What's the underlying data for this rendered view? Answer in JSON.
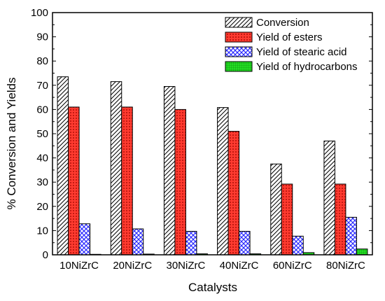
{
  "chart_data": {
    "type": "bar",
    "title": "",
    "xlabel": "Catalysts",
    "ylabel": "% Conversion and Yields",
    "ylim": [
      0,
      100
    ],
    "yticks": [
      0,
      10,
      20,
      30,
      40,
      50,
      60,
      70,
      80,
      90,
      100
    ],
    "grid": false,
    "legend_position": "top-right",
    "categories": [
      "10NiZrC",
      "20NiZrC",
      "30NiZrC",
      "40NiZrC",
      "60NiZrC",
      "80NiZrC"
    ],
    "series": [
      {
        "name": "Conversion",
        "values": [
          73.5,
          71.5,
          69.5,
          60.8,
          37.5,
          47.0
        ],
        "fill": "#ffffff",
        "pattern": "diagonal-hatch",
        "stroke": "#000000"
      },
      {
        "name": "Yield of esters",
        "values": [
          61.0,
          61.0,
          60.0,
          51.0,
          29.2,
          29.2
        ],
        "fill": "#ff3b30",
        "pattern": "dots",
        "stroke": "#000000"
      },
      {
        "name": "Yield of stearic acid",
        "values": [
          12.8,
          10.7,
          9.7,
          9.7,
          7.7,
          15.5
        ],
        "fill": "#2a2aff",
        "pattern": "crosshatch",
        "stroke": "#000000"
      },
      {
        "name": "Yield of hydrocarbons",
        "values": [
          0.2,
          0.3,
          0.4,
          0.4,
          0.9,
          2.4
        ],
        "fill": "#22cc22",
        "pattern": "grid",
        "stroke": "#000000"
      }
    ]
  }
}
